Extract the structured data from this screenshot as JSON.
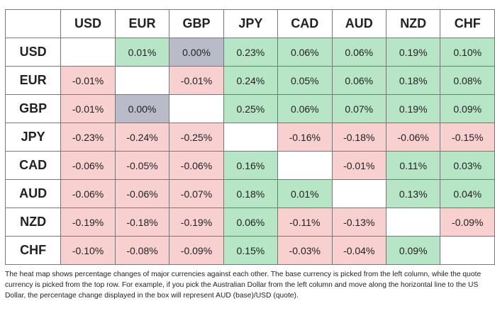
{
  "table": {
    "columns": [
      "USD",
      "EUR",
      "GBP",
      "JPY",
      "CAD",
      "AUD",
      "NZD",
      "CHF"
    ],
    "rows": [
      [
        "USD",
        null,
        "0.01%",
        "0.00%",
        "0.23%",
        "0.06%",
        "0.06%",
        "0.19%",
        "0.10%"
      ],
      [
        "EUR",
        "-0.01%",
        null,
        "-0.01%",
        "0.24%",
        "0.05%",
        "0.06%",
        "0.18%",
        "0.08%"
      ],
      [
        "GBP",
        "-0.01%",
        "0.00%",
        null,
        "0.25%",
        "0.06%",
        "0.07%",
        "0.19%",
        "0.09%"
      ],
      [
        "JPY",
        "-0.23%",
        "-0.24%",
        "-0.25%",
        null,
        "-0.16%",
        "-0.18%",
        "-0.06%",
        "-0.15%"
      ],
      [
        "CAD",
        "-0.06%",
        "-0.05%",
        "-0.06%",
        "0.16%",
        null,
        "-0.01%",
        "0.11%",
        "0.03%"
      ],
      [
        "AUD",
        "-0.06%",
        "-0.06%",
        "-0.07%",
        "0.18%",
        "0.01%",
        null,
        "0.13%",
        "0.04%"
      ],
      [
        "NZD",
        "-0.19%",
        "-0.18%",
        "-0.19%",
        "0.06%",
        "-0.11%",
        "-0.13%",
        null,
        "-0.09%"
      ],
      [
        "CHF",
        "-0.10%",
        "-0.08%",
        "-0.09%",
        "0.15%",
        "-0.03%",
        "-0.04%",
        "0.09%",
        null
      ]
    ]
  },
  "note": "The heat map shows percentage changes of major currencies against each other. The base currency is picked from the left column, while the quote currency is picked from the top row. For example, if you pick the Australian Dollar from the left column and move along the horizontal line to the US Dollar, the percentage change displayed in the box will represent AUD (base)/USD (quote)."
}
